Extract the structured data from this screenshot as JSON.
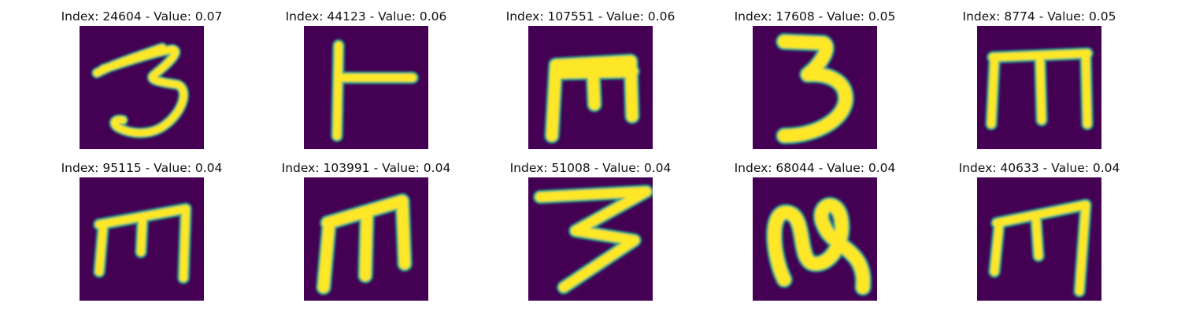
{
  "colors": {
    "background": "#440154",
    "edge_dark": "#31688e",
    "edge_mid": "#21a585",
    "edge_light": "#7ad151",
    "fill": "#fde725"
  },
  "panels": [
    {
      "title": "Index: 24604 - Value: 0.07",
      "glyph": "three-hooked"
    },
    {
      "title": "Index: 44123 - Value: 0.06",
      "glyph": "vertical-bar-with-crossbar"
    },
    {
      "title": "Index: 107551 - Value: 0.06",
      "glyph": "m-shape"
    },
    {
      "title": "Index: 17608 - Value: 0.05",
      "glyph": "three-bold"
    },
    {
      "title": "Index: 8774 - Value: 0.05",
      "glyph": "m-shape"
    },
    {
      "title": "Index: 95115 - Value: 0.04",
      "glyph": "m-shape"
    },
    {
      "title": "Index: 103991 - Value: 0.04",
      "glyph": "m-shape"
    },
    {
      "title": "Index: 51008 - Value: 0.04",
      "glyph": "three-wide"
    },
    {
      "title": "Index: 68044 - Value: 0.04",
      "glyph": "squiggle"
    },
    {
      "title": "Index: 40633 - Value: 0.04",
      "glyph": "m-shape"
    }
  ]
}
